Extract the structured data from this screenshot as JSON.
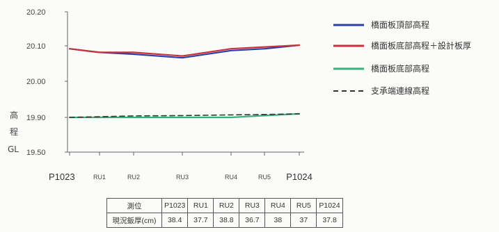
{
  "chart_data": {
    "type": "line",
    "ylabel": "高程 GL",
    "ytick_labels": [
      "20.20",
      "20.10",
      "20.00",
      "19.90",
      "19.50"
    ],
    "x": [
      "P1023",
      "RU1",
      "RU2",
      "RU3",
      "RU4",
      "RU5",
      "P1024"
    ],
    "series": [
      {
        "name": "橋面板頂部高程",
        "color": "#2b3fa8",
        "dash": "solid",
        "values": [
          20.09,
          20.08,
          20.075,
          20.065,
          20.085,
          20.09,
          20.1
        ]
      },
      {
        "name": "橋面板底部高程＋設計板厚",
        "color": "#c8333a",
        "dash": "solid",
        "values": [
          20.09,
          20.08,
          20.08,
          20.07,
          20.09,
          20.095,
          20.1
        ]
      },
      {
        "name": "橋面板底部高程",
        "color": "#35b27a",
        "dash": "solid",
        "values": [
          19.9,
          19.89,
          19.885,
          19.88,
          19.895,
          19.905,
          19.91
        ]
      },
      {
        "name": "支承端連線高程",
        "color": "#333333",
        "dash": "dashed",
        "values": [
          19.9,
          19.902,
          19.904,
          19.905,
          19.907,
          19.908,
          19.91
        ]
      }
    ],
    "legend_position": "right",
    "grid": false
  },
  "table": {
    "header": "測位",
    "row_label": "現況鈑厚(cm)",
    "columns": [
      "P1023",
      "RU1",
      "RU2",
      "RU3",
      "RU4",
      "RU5",
      "P1024"
    ],
    "values": [
      "38.4",
      "37.7",
      "38.8",
      "36.7",
      "38",
      "37",
      "37.8"
    ]
  }
}
